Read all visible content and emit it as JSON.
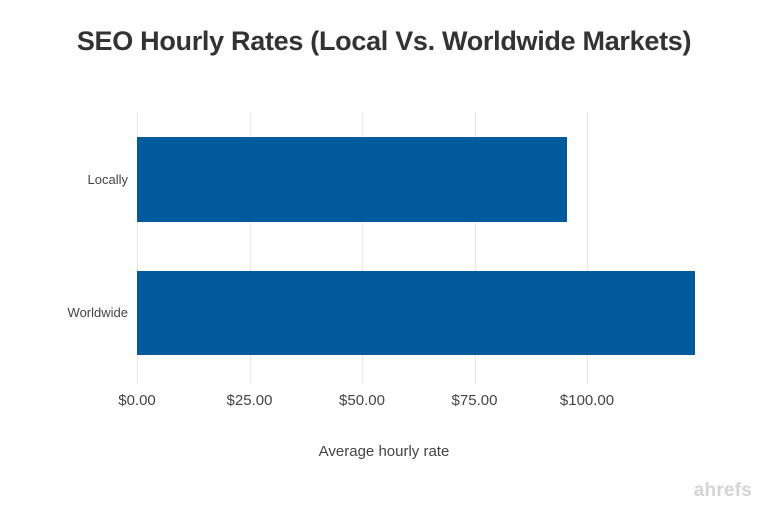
{
  "chart_data": {
    "type": "bar",
    "orientation": "horizontal",
    "title": "SEO Hourly Rates (Local Vs. Worldwide Markets)",
    "categories": [
      "Locally",
      "Worldwide"
    ],
    "values": [
      95.6,
      123.9
    ],
    "xlabel": "Average hourly rate",
    "ylabel": "",
    "xlim": [
      0,
      125
    ],
    "x_ticks": [
      "$0.00",
      "$25.00",
      "$50.00",
      "$75.00",
      "$100.00"
    ],
    "x_tick_values": [
      0,
      25,
      50,
      75,
      100
    ],
    "grid": "vertical",
    "legend": null,
    "bar_color": "#005a9c"
  },
  "branding": {
    "logo_text": "ahrefs"
  }
}
